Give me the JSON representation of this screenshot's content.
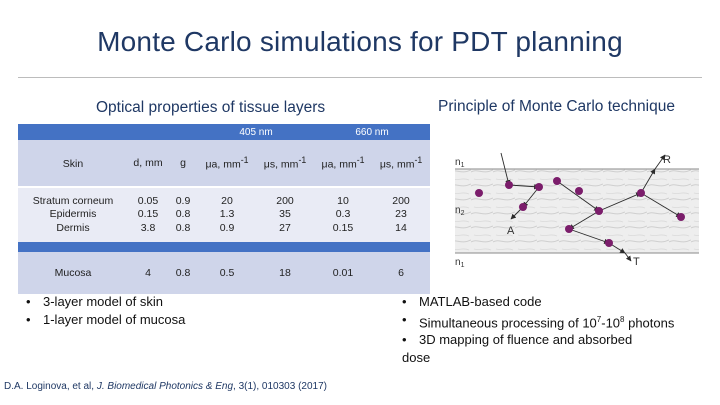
{
  "slide": {
    "title": "Monte Carlo simulations for PDT planning",
    "left_heading": "Optical properties of tissue layers",
    "right_heading": "Principle of Monte Carlo technique"
  },
  "table": {
    "group_405": "405 nm",
    "group_660": "660 nm",
    "header": {
      "label": "Skin",
      "d": "d, mm",
      "g": "g",
      "mua": "μa, mm",
      "mus": "μs, mm",
      "exp": "-1"
    },
    "skin_rows": {
      "labels": [
        "Stratum corneum",
        "Epidermis",
        "Dermis"
      ],
      "d": [
        "0.05",
        "0.15",
        "3.8"
      ],
      "g": [
        "0.9",
        "0.8",
        "0.8"
      ],
      "mua_405": [
        "20",
        "1.3",
        "0.9"
      ],
      "mus_405": [
        "200",
        "35",
        "27"
      ],
      "mua_660": [
        "10",
        "0.3",
        "0.15"
      ],
      "mus_660": [
        "200",
        "23",
        "14"
      ]
    },
    "mucosa": {
      "label": "Mucosa",
      "d": "4",
      "g": "0.8",
      "mua_405": "0.5",
      "mus_405": "18",
      "mua_660": "0.01",
      "mus_660": "6"
    }
  },
  "diagram": {
    "n1_top": "n",
    "n2": "n",
    "n1_bottom": "n",
    "sub1": "1",
    "sub2": "2",
    "label_R": "R",
    "label_A": "A",
    "label_T": "T",
    "texture_color": "#d9d9d9",
    "photon_color": "#7b1d6b"
  },
  "left_bullets": [
    "3-layer model of skin",
    "1-layer model of mucosa"
  ],
  "right_bullets": {
    "b1": "MATLAB-based code",
    "b2_pre": "Simultaneous processing of 10",
    "b2_exp1": "7",
    "b2_mid": "-10",
    "b2_exp2": "8",
    "b2_post": " photons",
    "b3_line1": "3D mapping of fluence and absorbed",
    "b3_line2": "dose"
  },
  "citation": {
    "authors": "D.A. Loginova, et al, ",
    "journal": "J. Biomedical Photonics & Eng",
    "details": ", 3(1), 010303 (2017)"
  }
}
